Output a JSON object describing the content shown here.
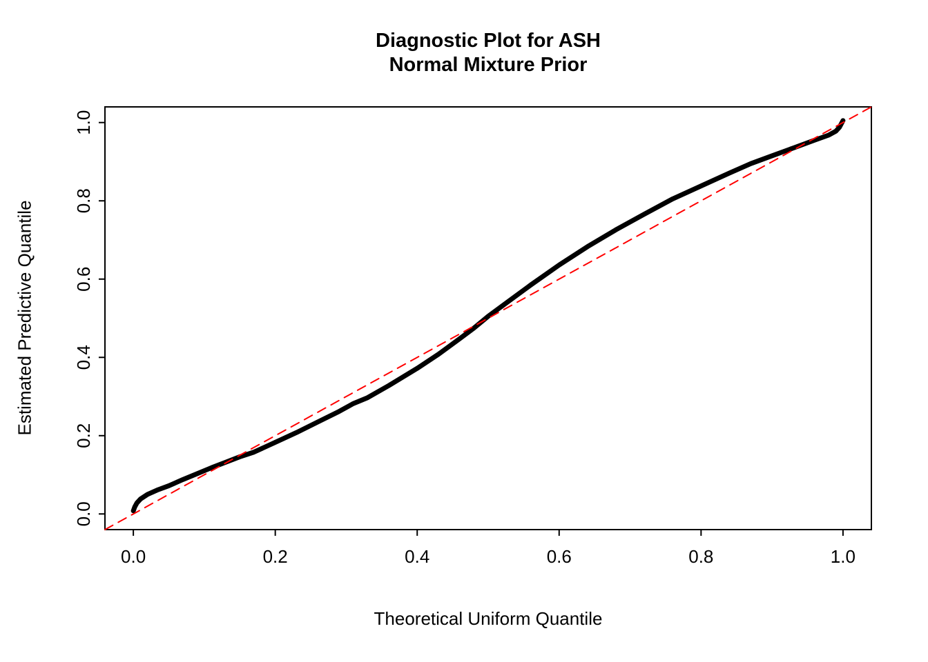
{
  "page": {
    "background": "#ffffff"
  },
  "chart_data": {
    "type": "line",
    "title": "Diagnostic Plot for ASH\nNormal Mixture Prior",
    "title_lines": [
      "Diagnostic Plot for ASH",
      "Normal Mixture Prior"
    ],
    "xlabel": "Theoretical Uniform Quantile",
    "ylabel": "Estimated Predictive Quantile",
    "xlim": [
      -0.04,
      1.04
    ],
    "ylim": [
      -0.04,
      1.04
    ],
    "x_ticks": [
      0.0,
      0.2,
      0.4,
      0.6,
      0.8,
      1.0
    ],
    "y_ticks": [
      0.0,
      0.2,
      0.4,
      0.6,
      0.8,
      1.0
    ],
    "grid": false,
    "legend": null,
    "colors": {
      "quantile_curve": "#000000",
      "reference_line": "#ff0000",
      "axis": "#000000"
    },
    "series": [
      {
        "name": "estimated-quantile-curve",
        "color": "#000000",
        "line_width": 7,
        "dash": "solid",
        "x": [
          0.0,
          0.002,
          0.005,
          0.01,
          0.02,
          0.035,
          0.05,
          0.07,
          0.09,
          0.11,
          0.13,
          0.15,
          0.17,
          0.2,
          0.23,
          0.26,
          0.29,
          0.31,
          0.33,
          0.36,
          0.4,
          0.43,
          0.46,
          0.48,
          0.5,
          0.53,
          0.56,
          0.6,
          0.64,
          0.68,
          0.72,
          0.76,
          0.8,
          0.84,
          0.87,
          0.9,
          0.93,
          0.96,
          0.98,
          0.99,
          0.995,
          1.0
        ],
        "y": [
          0.008,
          0.018,
          0.028,
          0.038,
          0.05,
          0.062,
          0.072,
          0.088,
          0.103,
          0.118,
          0.132,
          0.146,
          0.158,
          0.183,
          0.208,
          0.235,
          0.262,
          0.282,
          0.297,
          0.328,
          0.372,
          0.408,
          0.448,
          0.475,
          0.505,
          0.545,
          0.585,
          0.636,
          0.683,
          0.726,
          0.766,
          0.805,
          0.838,
          0.871,
          0.895,
          0.915,
          0.935,
          0.955,
          0.968,
          0.978,
          0.988,
          1.005
        ]
      },
      {
        "name": "identity-reference-line",
        "color": "#ff0000",
        "line_width": 2,
        "dash": "dashed",
        "x": [
          -0.04,
          1.04
        ],
        "y": [
          -0.04,
          1.04
        ]
      }
    ]
  }
}
